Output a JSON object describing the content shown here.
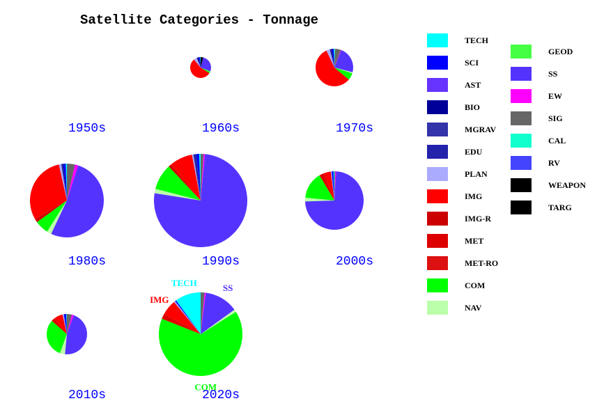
{
  "chart_data": {
    "type": "pie",
    "title": "Satellite Categories - Tonnage",
    "legend_placement": "right",
    "categories": [
      "TECH",
      "SCI",
      "AST",
      "BIO",
      "MGRAV",
      "EDU",
      "PLAN",
      "IMG",
      "IMG-R",
      "MET",
      "MET-RO",
      "COM",
      "NAV",
      "GEOD",
      "SS",
      "EW",
      "SIG",
      "CAL",
      "RV",
      "WEAPON",
      "TARG"
    ],
    "colors": {
      "TECH": "#00ffff",
      "SCI": "#0000ff",
      "AST": "#6633ff",
      "BIO": "#000099",
      "MGRAV": "#3333aa",
      "EDU": "#2222aa",
      "PLAN": "#aaaaff",
      "IMG": "#ff0000",
      "IMG-R": "#cc0000",
      "MET": "#dd0000",
      "MET-RO": "#dd1111",
      "COM": "#00ff00",
      "NAV": "#bbffaa",
      "GEOD": "#44ff44",
      "SS": "#5533ff",
      "EW": "#ff00ff",
      "SIG": "#666666",
      "CAL": "#11ffcc",
      "RV": "#4444ff",
      "WEAPON": "#000000",
      "TARG": "#000000"
    },
    "pies": [
      {
        "label": "1950s",
        "relative_total": 0,
        "slices": {}
      },
      {
        "label": "1960s",
        "relative_total": 225,
        "slices": {
          "TECH": 1,
          "SCI": 2,
          "BIO": 3,
          "PLAN": 5,
          "IMG": 55,
          "COM": 2,
          "GEOD": 1,
          "SS": 27,
          "WEAPON": 4
        }
      },
      {
        "label": "1970s",
        "relative_total": 729,
        "slices": {
          "TECH": 0.5,
          "SCI": 1.5,
          "BIO": 1,
          "EDU": 1,
          "PLAN": 3,
          "IMG": 57,
          "COM": 6,
          "NAV": 1,
          "SS": 23,
          "EW": 0.5,
          "SIG": 5,
          "CAL": 0.5
        }
      },
      {
        "label": "1980s",
        "relative_total": 2809,
        "slices": {
          "TECH": 0.5,
          "SCI": 1,
          "BIO": 0.5,
          "MGRAV": 0.5,
          "PLAN": 1,
          "IMG": 30,
          "IMG-R": 1.5,
          "COM": 6,
          "NAV": 2,
          "SS": 52,
          "EW": 1.5,
          "SIG": 3.5
        }
      },
      {
        "label": "1990s",
        "relative_total": 4489,
        "slices": {
          "TECH": 0.5,
          "SCI": 1,
          "EDU": 1,
          "PLAN": 0.5,
          "IMG": 8,
          "IMG-R": 1,
          "COM": 9,
          "NAV": 1.5,
          "SS": 76,
          "EW": 0.5,
          "SIG": 1
        }
      },
      {
        "label": "2000s",
        "relative_total": 1764,
        "slices": {
          "TECH": 0.5,
          "SCI": 1,
          "PLAN": 0.5,
          "IMG": 4,
          "MET": 2.5,
          "COM": 15,
          "NAV": 2,
          "SS": 73.5,
          "EW": 0.5,
          "SIG": 0.5
        }
      },
      {
        "label": "2010s",
        "relative_total": 841,
        "slices": {
          "TECH": 0.5,
          "SCI": 2,
          "PLAN": 1,
          "IMG": 7,
          "MET": 3,
          "COM": 31,
          "NAV": 4,
          "SS": 46,
          "EW": 1.5,
          "SIG": 4
        }
      },
      {
        "label": "2020s",
        "relative_total": 3600,
        "slices": {
          "TECH": 10,
          "SCI": 0.5,
          "PLAN": 0.5,
          "IMG": 6,
          "MET": 2,
          "COM": 65,
          "NAV": 1,
          "SS": 13,
          "EW": 0.5,
          "SIG": 1.5
        },
        "slice_labels": [
          "TECH",
          "IMG",
          "SS",
          "COM"
        ]
      }
    ]
  }
}
